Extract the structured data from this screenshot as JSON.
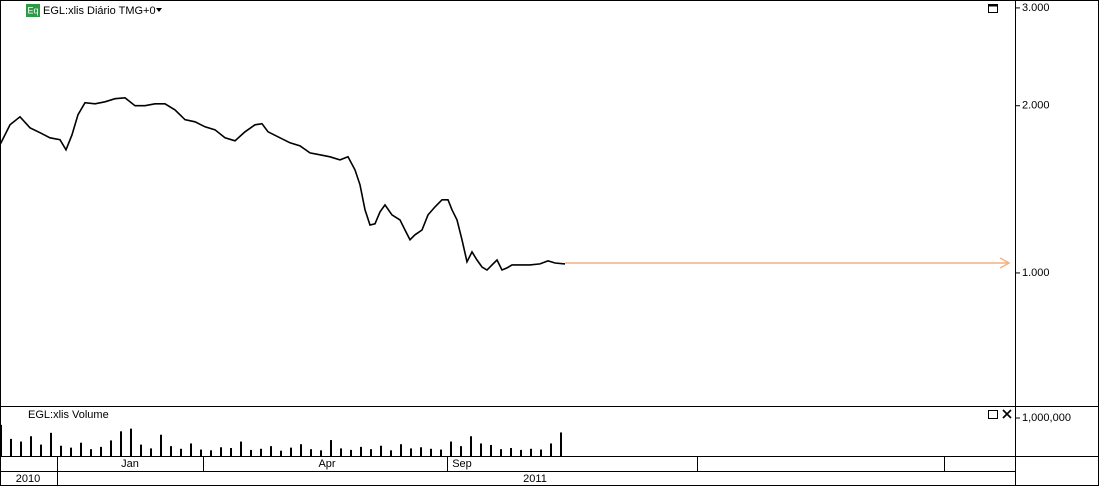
{
  "chart_data": [
    {
      "type": "line",
      "title": "EGL:xlis Diário TMG+0",
      "icon": "Eq",
      "log_scale": true,
      "color": "#000000",
      "x": [
        0,
        10,
        20,
        30,
        40,
        50,
        60,
        66,
        72,
        78,
        85,
        95,
        105,
        115,
        125,
        135,
        145,
        155,
        165,
        175,
        185,
        195,
        205,
        215,
        225,
        235,
        245,
        255,
        262,
        268,
        280,
        290,
        300,
        310,
        320,
        330,
        340,
        348,
        355,
        360,
        365,
        370,
        375,
        380,
        385,
        392,
        400,
        405,
        410,
        415,
        422,
        428,
        435,
        442,
        448,
        452,
        457,
        462,
        467,
        472,
        477,
        482,
        487,
        492,
        497,
        502,
        507,
        512,
        520,
        530,
        540,
        548,
        555,
        565
      ],
      "values": [
        1.701,
        1.848,
        1.91,
        1.825,
        1.788,
        1.751,
        1.737,
        1.666,
        1.773,
        1.927,
        2.025,
        2.016,
        2.033,
        2.059,
        2.067,
        2.0,
        2.0,
        2.016,
        2.016,
        1.966,
        1.887,
        1.871,
        1.833,
        1.81,
        1.751,
        1.729,
        1.795,
        1.848,
        1.856,
        1.795,
        1.751,
        1.715,
        1.694,
        1.645,
        1.632,
        1.618,
        1.598,
        1.618,
        1.533,
        1.441,
        1.299,
        1.22,
        1.226,
        1.288,
        1.326,
        1.272,
        1.246,
        1.195,
        1.147,
        1.171,
        1.195,
        1.272,
        1.315,
        1.354,
        1.354,
        1.299,
        1.246,
        1.147,
        1.047,
        1.091,
        1.055,
        1.025,
        1.012,
        1.034,
        1.055,
        1.012,
        1.021,
        1.034,
        1.034,
        1.034,
        1.038,
        1.051,
        1.042,
        1.038
      ],
      "xlim": [
        0,
        1015
      ],
      "ylim": [
        0.576,
        3.1
      ],
      "yticks": [
        {
          "value": 3,
          "label": "3.000"
        },
        {
          "value": 2,
          "label": "2.000"
        },
        {
          "value": 1,
          "label": "1.000"
        }
      ],
      "arrow": {
        "value": 1.042,
        "color": "#f4b183"
      }
    },
    {
      "type": "bar",
      "title": "EGL:xlis Volume",
      "color": "#000000",
      "x": [
        0,
        10,
        20,
        30,
        40,
        50,
        60,
        70,
        80,
        90,
        100,
        110,
        120,
        130,
        140,
        150,
        160,
        170,
        180,
        190,
        200,
        210,
        220,
        230,
        240,
        250,
        260,
        270,
        280,
        290,
        300,
        310,
        320,
        330,
        340,
        350,
        360,
        370,
        380,
        390,
        400,
        410,
        420,
        430,
        440,
        450,
        460,
        470,
        480,
        490,
        500,
        510,
        520,
        530,
        540,
        550,
        560
      ],
      "values": [
        820000,
        450000,
        380000,
        520000,
        300000,
        610000,
        270000,
        220000,
        350000,
        180000,
        240000,
        410000,
        650000,
        720000,
        300000,
        200000,
        560000,
        260000,
        190000,
        330000,
        170000,
        150000,
        230000,
        210000,
        380000,
        160000,
        190000,
        260000,
        140000,
        220000,
        310000,
        180000,
        150000,
        420000,
        200000,
        160000,
        240000,
        180000,
        270000,
        150000,
        310000,
        200000,
        230000,
        190000,
        170000,
        380000,
        260000,
        520000,
        330000,
        290000,
        180000,
        210000,
        160000,
        190000,
        170000,
        330000,
        620000
      ],
      "xlim": [
        0,
        1015
      ],
      "ylim": [
        0,
        1290000
      ],
      "yticks": [
        {
          "value": 1000000,
          "label": "1,000,000"
        }
      ]
    }
  ],
  "time_axis": {
    "months": [
      "Jan",
      "Apr",
      "Sep"
    ],
    "years": [
      "2010",
      "2011"
    ]
  }
}
